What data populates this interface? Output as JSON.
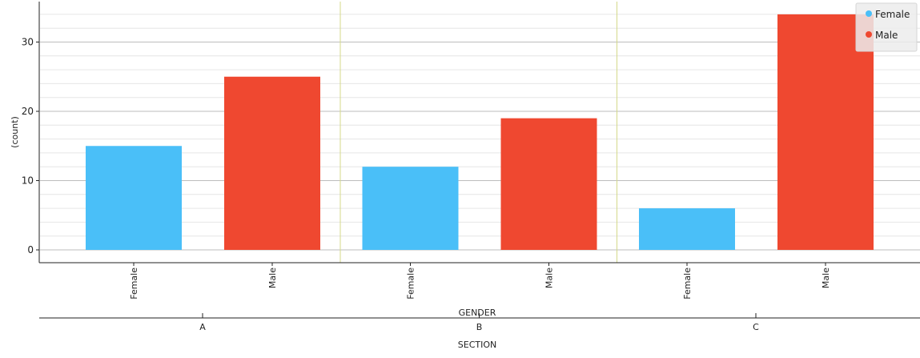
{
  "chart_data": {
    "type": "bar",
    "ylabel": "(count)",
    "inner_axis_label": "GENDER",
    "outer_axis_label": "SECTION",
    "ylim": [
      0,
      35
    ],
    "yticks": [
      0,
      10,
      20,
      30
    ],
    "grid": true,
    "legend_position": "top-right",
    "groups": [
      {
        "name": "A",
        "bars": [
          {
            "category": "Female",
            "value": 15
          },
          {
            "category": "Male",
            "value": 25
          }
        ]
      },
      {
        "name": "B",
        "bars": [
          {
            "category": "Female",
            "value": 12
          },
          {
            "category": "Male",
            "value": 19
          }
        ]
      },
      {
        "name": "C",
        "bars": [
          {
            "category": "Female",
            "value": 6
          },
          {
            "category": "Male",
            "value": 34
          }
        ]
      }
    ],
    "series": [
      {
        "name": "Female",
        "color": "#4ABFF8"
      },
      {
        "name": "Male",
        "color": "#EF4830"
      }
    ]
  }
}
